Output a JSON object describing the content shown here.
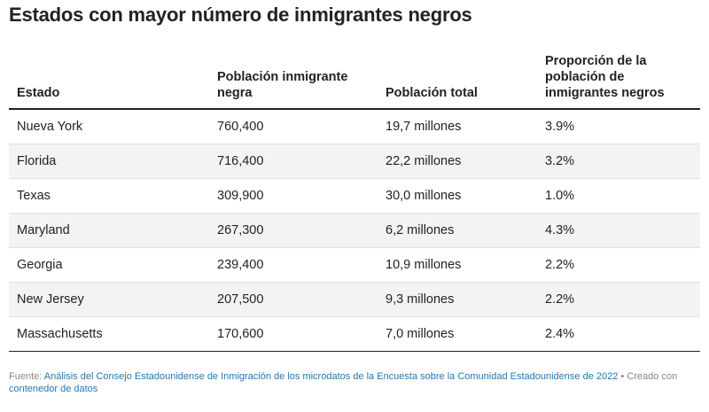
{
  "title": "Estados con mayor número de inmigrantes negros",
  "chart_data": {
    "type": "table",
    "title": "Estados con mayor número de inmigrantes negros",
    "columns": [
      "Estado",
      "Población inmigrante negra",
      "Población total",
      "Proporción de la población de inmigrantes negros"
    ],
    "rows": [
      [
        "Nueva York",
        "760,400",
        "19,7 millones",
        "3.9%"
      ],
      [
        "Florida",
        "716,400",
        "22,2 millones",
        "3.2%"
      ],
      [
        "Texas",
        "309,900",
        "30,0 millones",
        "1.0%"
      ],
      [
        "Maryland",
        "267,300",
        "6,2 millones",
        "4.3%"
      ],
      [
        "Georgia",
        "239,400",
        "10,9 millones",
        "2.2%"
      ],
      [
        "New Jersey",
        "207,500",
        "9,3 millones",
        "2.2%"
      ],
      [
        "Massachusetts",
        "170,600",
        "7,0 millones",
        "2.4%"
      ]
    ]
  },
  "footer": {
    "source_label": "Fuente:",
    "source_link": "Análisis del Consejo Estadounidense de Inmigración de los microdatos de la Encuesta sobre la Comunidad Estadounidense de 2022",
    "separator": "•",
    "created_label": "Creado con",
    "created_link": "contenedor de datos"
  },
  "colors": {
    "text": "#222222",
    "row_stripe": "#f3f3f3",
    "link": "#1f78b4",
    "footer_text": "#888888"
  }
}
